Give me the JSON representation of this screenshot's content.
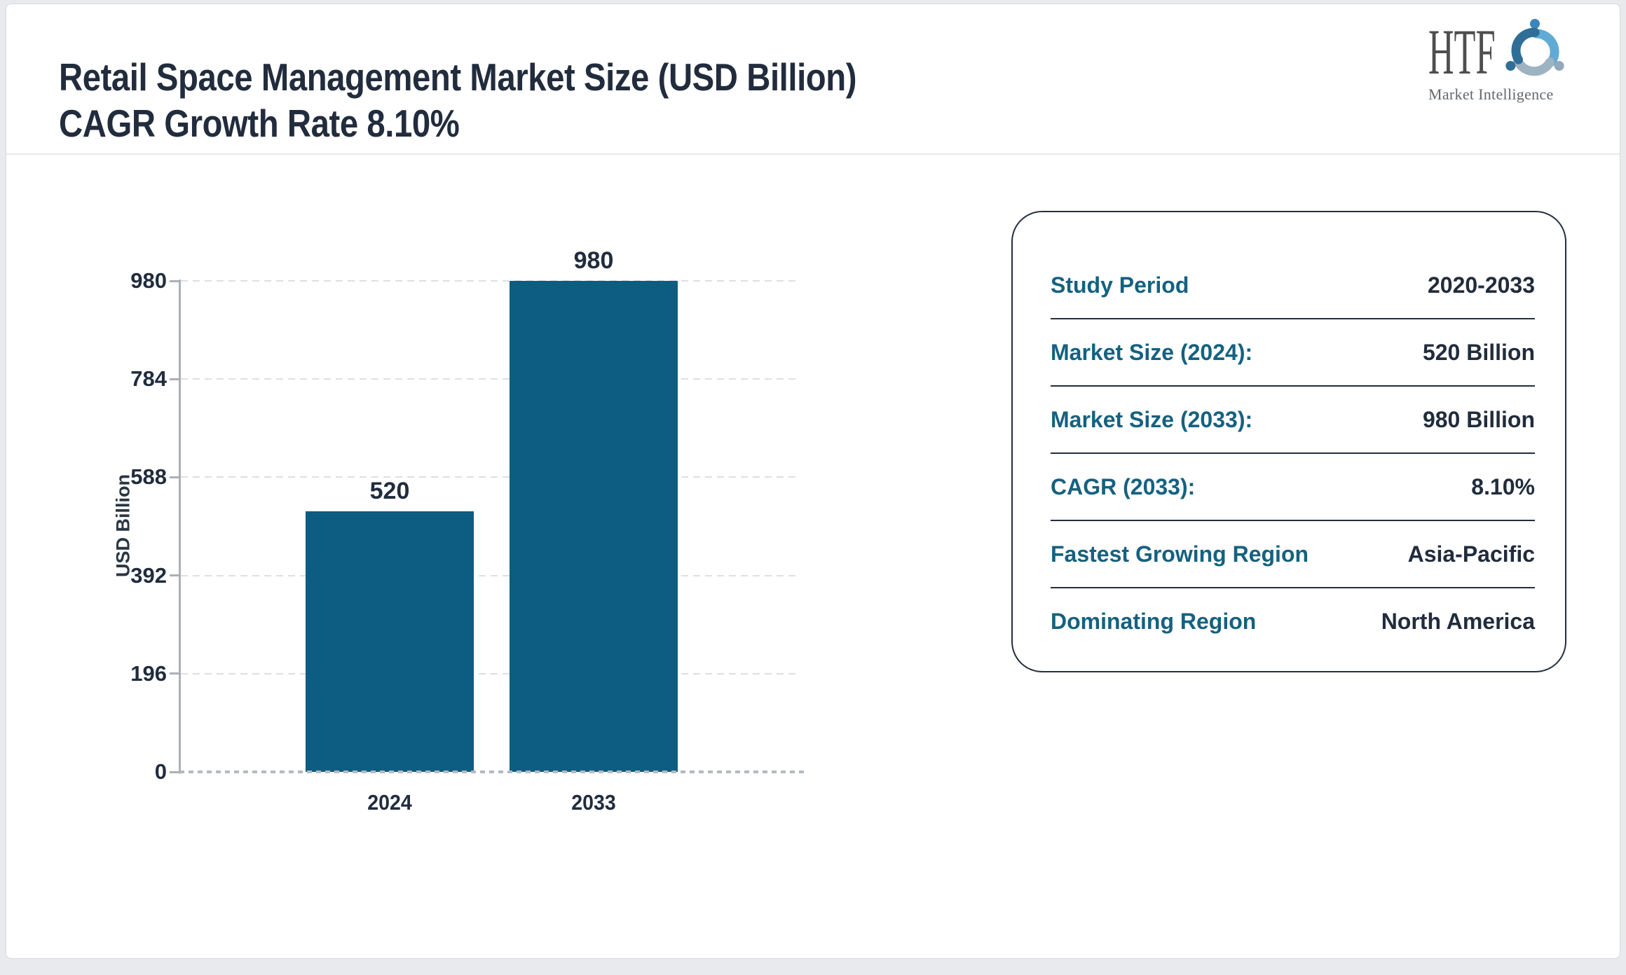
{
  "header": {
    "title": "Retail Space Management Market Size (USD Billion) CAGR Growth Rate 8.10%"
  },
  "logo": {
    "name": "HTF",
    "subtext": "Market Intelligence",
    "swirl_colors": [
      "#5fabd6",
      "#9db3c2",
      "#2f6e96"
    ],
    "head_colors": [
      "#3b86ba",
      "#93a9b9",
      "#2f6e96"
    ]
  },
  "chart_data": {
    "type": "bar",
    "title": "Retail Space Management Market Size (USD Billion) CAGR Growth Rate 8.10%",
    "categories": [
      "2024",
      "2033"
    ],
    "values": [
      520,
      980
    ],
    "value_labels": [
      "520",
      "980"
    ],
    "xlabel": "",
    "ylabel": "USD Billion",
    "yticks": [
      0,
      196,
      392,
      588,
      784,
      980
    ],
    "ylim": [
      0,
      980
    ],
    "grid": true,
    "gridline_style": "dashed",
    "legend": "none",
    "bar_color": "#0d5c81"
  },
  "panel": {
    "label_color": "#156180",
    "value_color": "#212c3d",
    "rows": [
      {
        "label": "Study Period",
        "value": "2020-2033"
      },
      {
        "label": "Market Size (2024):",
        "value": "520 Billion"
      },
      {
        "label": "Market Size (2033):",
        "value": "980 Billion"
      },
      {
        "label": "CAGR (2033):",
        "value": "8.10%"
      },
      {
        "label": "Fastest Growing Region",
        "value": "Asia-Pacific"
      },
      {
        "label": "Dominating Region",
        "value": "North America"
      }
    ]
  }
}
